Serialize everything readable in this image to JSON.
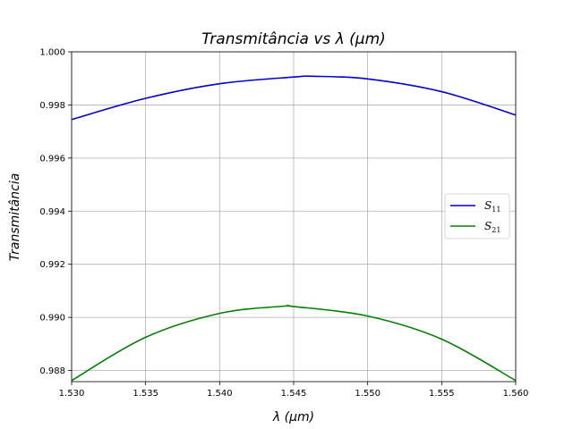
{
  "chart_data": {
    "type": "line",
    "title": "Transmitância vs λ (µm)",
    "xlabel": "λ (µm)",
    "ylabel": "Transmitância",
    "xlim": [
      1.53,
      1.56
    ],
    "ylim": [
      0.98758,
      1.0
    ],
    "xticks": [
      "1.530",
      "1.535",
      "1.540",
      "1.545",
      "1.550",
      "1.555",
      "1.560"
    ],
    "yticks": [
      "0.988",
      "0.990",
      "0.992",
      "0.994",
      "0.996",
      "0.998",
      "1.000"
    ],
    "grid": true,
    "legend_position": "center-right",
    "series": [
      {
        "name": "S",
        "subscript": "11",
        "color": "#0000cc",
        "x": [
          1.53,
          1.535,
          1.54,
          1.545,
          1.5463,
          1.55,
          1.555,
          1.56
        ],
        "y": [
          0.99745,
          0.99825,
          0.9988,
          0.99905,
          0.99908,
          0.99898,
          0.9985,
          0.99762
        ]
      },
      {
        "name": "S",
        "subscript": "21",
        "color": "#008000",
        "x": [
          1.53,
          1.535,
          1.54,
          1.5443,
          1.545,
          1.55,
          1.555,
          1.56
        ],
        "y": [
          0.98762,
          0.98925,
          0.99015,
          0.99042,
          0.99041,
          0.99005,
          0.98918,
          0.98762
        ]
      }
    ]
  }
}
